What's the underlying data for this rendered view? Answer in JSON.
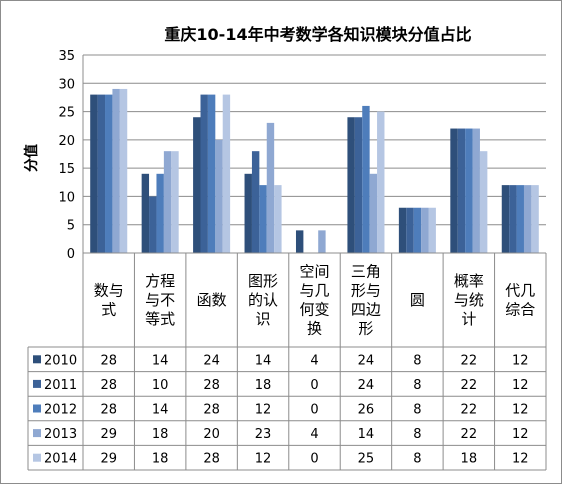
{
  "chart_data": {
    "type": "bar",
    "title": "重庆10-14年中考数学各知识模块分值占比",
    "ylabel": "分值",
    "ylim": [
      0,
      35
    ],
    "yticks": [
      0,
      5,
      10,
      15,
      20,
      25,
      30,
      35
    ],
    "grid": true,
    "legend": "data-table-left",
    "categories": [
      [
        "数与",
        "式"
      ],
      [
        "方程",
        "与不",
        "等式"
      ],
      [
        "函数"
      ],
      [
        "图形",
        "的认",
        "识"
      ],
      [
        "空间",
        "与几",
        "何变",
        "换"
      ],
      [
        "三角",
        "形与",
        "四边",
        "形"
      ],
      [
        "圆"
      ],
      [
        "概率",
        "与统",
        "计"
      ],
      [
        "代几",
        "综合"
      ]
    ],
    "series": [
      {
        "name": "2010",
        "color": "#2E4F7A",
        "values": [
          28,
          14,
          24,
          14,
          4,
          24,
          8,
          22,
          12
        ]
      },
      {
        "name": "2011",
        "color": "#3C6298",
        "values": [
          28,
          10,
          28,
          18,
          0,
          24,
          8,
          22,
          12
        ]
      },
      {
        "name": "2012",
        "color": "#4E7DBB",
        "values": [
          28,
          14,
          28,
          12,
          0,
          26,
          8,
          22,
          12
        ]
      },
      {
        "name": "2013",
        "color": "#8FA8D2",
        "values": [
          29,
          18,
          20,
          23,
          4,
          14,
          8,
          22,
          12
        ]
      },
      {
        "name": "2014",
        "color": "#B5C6E3",
        "values": [
          29,
          18,
          28,
          12,
          0,
          25,
          8,
          18,
          12
        ]
      }
    ]
  }
}
